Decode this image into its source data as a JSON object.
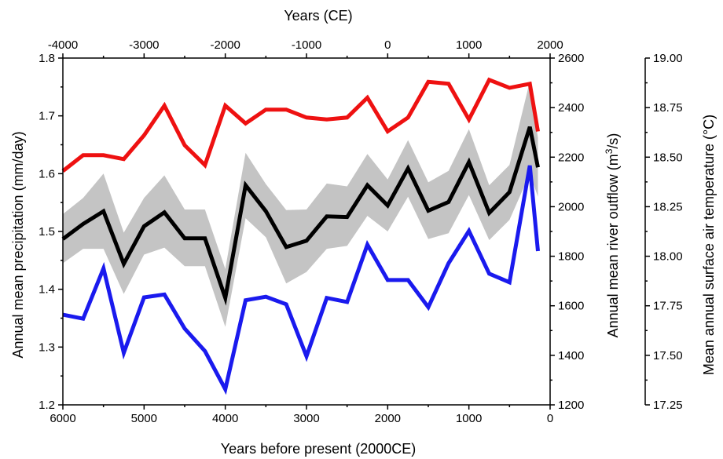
{
  "chart_data": {
    "type": "line",
    "xlabel_bottom": "Years before present (2000CE)",
    "xlabel_top": "Years (CE)",
    "ylabel_left": "Annual mean precipitation (mm/day)",
    "ylabel_right1_prefix": "Annual mean river outflow (m",
    "ylabel_right1_sup": "3",
    "ylabel_right1_suffix": "/s)",
    "ylabel_right2": "Mean annual surface air temperature (°C)",
    "xlim_bp": [
      6000,
      0
    ],
    "ylim_left": [
      1.2,
      1.8
    ],
    "ylim_right1": [
      1200,
      2600
    ],
    "ylim_right2": [
      17.25,
      19.0
    ],
    "bottom_ticks": [
      6000,
      5000,
      4000,
      3000,
      2000,
      1000,
      0
    ],
    "top_ticks": [
      -4000,
      -3000,
      -2000,
      -1000,
      0,
      1000,
      2000
    ],
    "left_ticks": [
      "1.2",
      "1.3",
      "1.4",
      "1.5",
      "1.6",
      "1.7",
      "1.8"
    ],
    "right1_ticks": [
      1200,
      1400,
      1600,
      1800,
      2000,
      2200,
      2400,
      2600
    ],
    "right2_ticks": [
      "17.25",
      "17.50",
      "17.75",
      "18.00",
      "18.25",
      "18.50",
      "18.75",
      "19.00"
    ],
    "colors": {
      "temperature": "#ee1111",
      "precipitation": "#000000",
      "river_outflow": "#1a1aee",
      "band": "#c4c4c4"
    },
    "series": [
      {
        "axis": "right2",
        "color": "#ee1111",
        "x": [
          6000,
          5750,
          5500,
          5250,
          5000,
          4750,
          4500,
          4250,
          4000,
          3750,
          3500,
          3250,
          3000,
          2750,
          2500,
          2250,
          2000,
          1750,
          1500,
          1250,
          1000,
          750,
          500,
          250,
          150
        ],
        "y": [
          18.43,
          18.51,
          18.51,
          18.49,
          18.61,
          18.76,
          18.56,
          18.46,
          18.76,
          18.67,
          18.74,
          18.74,
          18.7,
          18.69,
          18.7,
          18.8,
          18.63,
          18.7,
          18.88,
          18.87,
          18.69,
          18.89,
          18.85,
          18.87,
          18.63
        ]
      },
      {
        "axis": "left",
        "color": "#1a1aee",
        "x": [
          6000,
          5750,
          5500,
          5250,
          5000,
          4750,
          4500,
          4250,
          4000,
          3750,
          3500,
          3250,
          3000,
          2750,
          2500,
          2250,
          2000,
          1750,
          1500,
          1250,
          1000,
          750,
          500,
          250,
          150
        ],
        "y": [
          1.356,
          1.349,
          1.436,
          1.29,
          1.386,
          1.391,
          1.332,
          1.293,
          1.227,
          1.381,
          1.387,
          1.374,
          1.284,
          1.385,
          1.378,
          1.477,
          1.416,
          1.416,
          1.369,
          1.445,
          1.501,
          1.427,
          1.412,
          1.614,
          1.466
        ]
      },
      {
        "axis": "left",
        "color": "#000000",
        "x": [
          6000,
          5750,
          5500,
          5250,
          5000,
          4750,
          4500,
          4250,
          4000,
          3750,
          3500,
          3250,
          3000,
          2750,
          2500,
          2250,
          2000,
          1750,
          1500,
          1250,
          1000,
          750,
          500,
          250,
          150
        ],
        "y": [
          1.487,
          1.513,
          1.535,
          1.444,
          1.509,
          1.533,
          1.488,
          1.488,
          1.385,
          1.58,
          1.535,
          1.473,
          1.484,
          1.526,
          1.525,
          1.58,
          1.545,
          1.609,
          1.536,
          1.551,
          1.62,
          1.532,
          1.568,
          1.681,
          1.611
        ],
        "band_lower": [
          1.445,
          1.47,
          1.47,
          1.392,
          1.46,
          1.472,
          1.44,
          1.44,
          1.335,
          1.523,
          1.49,
          1.41,
          1.43,
          1.47,
          1.475,
          1.527,
          1.5,
          1.56,
          1.487,
          1.497,
          1.563,
          1.485,
          1.52,
          1.6,
          1.56
        ],
        "band_upper": [
          1.53,
          1.558,
          1.6,
          1.498,
          1.558,
          1.597,
          1.538,
          1.538,
          1.435,
          1.636,
          1.582,
          1.537,
          1.538,
          1.583,
          1.578,
          1.634,
          1.59,
          1.658,
          1.585,
          1.605,
          1.677,
          1.58,
          1.615,
          1.76,
          1.662
        ]
      }
    ],
    "grid": false,
    "legend": "none"
  }
}
